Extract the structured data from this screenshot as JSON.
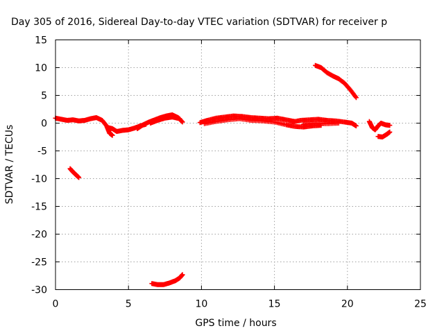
{
  "chart_data": {
    "type": "scatter",
    "title": "Day 305 of 2016, Sidereal Day-to-day VTEC variation (SDTVAR) for receiver p",
    "xlabel": "GPS time / hours",
    "ylabel": "SDTVAR / TECUs",
    "xlim": [
      0,
      25
    ],
    "ylim": [
      -30,
      15
    ],
    "xticks": [
      0,
      5,
      10,
      15,
      20,
      25
    ],
    "yticks": [
      -30,
      -25,
      -20,
      -15,
      -10,
      -5,
      0,
      5,
      10,
      15
    ],
    "grid": true,
    "marker": "plus",
    "color": "#ff0000",
    "segments": [
      {
        "points": [
          [
            0.0,
            0.9
          ],
          [
            0.4,
            0.7
          ],
          [
            0.8,
            0.5
          ],
          [
            1.2,
            0.6
          ],
          [
            1.6,
            0.4
          ],
          [
            2.0,
            0.5
          ],
          [
            2.4,
            0.8
          ],
          [
            2.8,
            1.0
          ],
          [
            3.2,
            0.5
          ],
          [
            3.5,
            -0.5
          ],
          [
            3.7,
            -1.8
          ],
          [
            3.9,
            -2.2
          ]
        ]
      },
      {
        "points": [
          [
            3.6,
            -0.8
          ],
          [
            3.9,
            -1.0
          ],
          [
            4.2,
            -1.5
          ],
          [
            4.6,
            -1.3
          ],
          [
            5.0,
            -1.2
          ],
          [
            5.4,
            -0.9
          ],
          [
            5.8,
            -0.5
          ],
          [
            6.2,
            -0.2
          ]
        ]
      },
      {
        "points": [
          [
            5.6,
            -1.0
          ],
          [
            6.0,
            -0.3
          ],
          [
            6.4,
            0.2
          ],
          [
            6.8,
            0.6
          ],
          [
            7.2,
            1.0
          ],
          [
            7.6,
            1.3
          ],
          [
            8.0,
            1.5
          ],
          [
            8.4,
            1.0
          ],
          [
            8.7,
            0.2
          ]
        ]
      },
      {
        "points": [
          [
            6.5,
            0.0
          ],
          [
            7.0,
            0.5
          ],
          [
            7.5,
            0.9
          ],
          [
            8.0,
            1.1
          ],
          [
            8.5,
            0.8
          ]
        ]
      },
      {
        "points": [
          [
            9.9,
            0.1
          ],
          [
            10.4,
            0.5
          ],
          [
            11.0,
            0.9
          ],
          [
            11.6,
            1.1
          ],
          [
            12.2,
            1.3
          ],
          [
            12.8,
            1.2
          ],
          [
            13.4,
            1.0
          ],
          [
            14.0,
            0.9
          ],
          [
            14.6,
            0.8
          ],
          [
            15.2,
            0.9
          ],
          [
            15.8,
            0.6
          ],
          [
            16.4,
            0.3
          ]
        ]
      },
      {
        "points": [
          [
            10.2,
            -0.1
          ],
          [
            11.0,
            0.3
          ],
          [
            11.8,
            0.6
          ],
          [
            12.6,
            0.8
          ],
          [
            13.4,
            0.5
          ],
          [
            14.2,
            0.4
          ],
          [
            15.0,
            0.2
          ],
          [
            15.8,
            -0.3
          ],
          [
            16.4,
            -0.6
          ],
          [
            17.0,
            -0.7
          ],
          [
            17.6,
            -0.5
          ],
          [
            18.2,
            -0.4
          ]
        ]
      },
      {
        "points": [
          [
            16.2,
            0.2
          ],
          [
            16.8,
            0.5
          ],
          [
            17.4,
            0.6
          ],
          [
            18.0,
            0.7
          ],
          [
            18.6,
            0.5
          ],
          [
            19.2,
            0.4
          ],
          [
            19.8,
            0.2
          ],
          [
            20.3,
            0.0
          ],
          [
            20.6,
            -0.5
          ]
        ]
      },
      {
        "points": [
          [
            17.0,
            -0.2
          ],
          [
            17.8,
            0.0
          ],
          [
            18.6,
            -0.1
          ],
          [
            19.4,
            0.0
          ]
        ]
      },
      {
        "points": [
          [
            21.5,
            0.3
          ],
          [
            21.7,
            -0.8
          ],
          [
            21.9,
            -1.2
          ],
          [
            22.1,
            -0.5
          ],
          [
            22.3,
            0.0
          ],
          [
            22.6,
            -0.3
          ],
          [
            22.9,
            -0.4
          ]
        ]
      },
      {
        "points": [
          [
            22.1,
            -2.4
          ],
          [
            22.4,
            -2.5
          ],
          [
            22.7,
            -2.0
          ],
          [
            22.9,
            -1.6
          ]
        ]
      },
      {
        "points": [
          [
            17.8,
            10.4
          ],
          [
            18.2,
            10.0
          ],
          [
            18.6,
            9.1
          ],
          [
            19.0,
            8.5
          ],
          [
            19.4,
            8.0
          ],
          [
            19.8,
            7.2
          ],
          [
            20.2,
            6.0
          ],
          [
            20.6,
            4.6
          ]
        ]
      },
      {
        "points": [
          [
            1.0,
            -8.2
          ],
          [
            1.2,
            -8.8
          ],
          [
            1.4,
            -9.3
          ],
          [
            1.6,
            -9.8
          ]
        ]
      },
      {
        "points": [
          [
            6.6,
            -28.9
          ],
          [
            7.0,
            -29.1
          ],
          [
            7.4,
            -29.1
          ],
          [
            7.8,
            -28.8
          ],
          [
            8.2,
            -28.4
          ],
          [
            8.5,
            -27.9
          ],
          [
            8.7,
            -27.3
          ]
        ]
      }
    ]
  }
}
